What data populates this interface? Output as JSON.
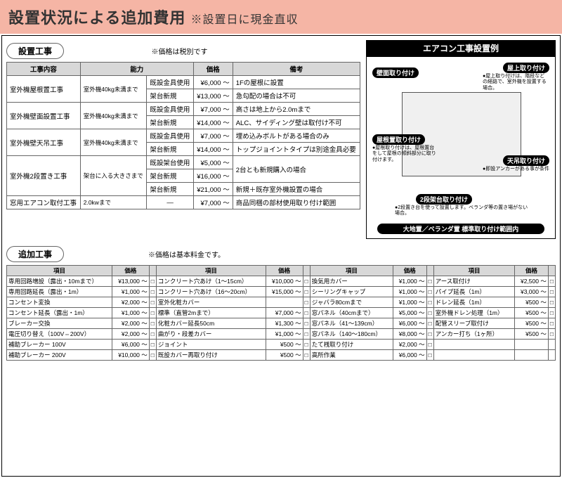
{
  "colors": {
    "header_bg": "#f5b5a5",
    "th_bg": "#d8d8d8",
    "border": "#666666",
    "black": "#000000"
  },
  "header": {
    "main": "設置状況による追加費用",
    "sub": "※設置日に現金直収"
  },
  "section1": {
    "label": "設置工事",
    "note": "※価格は税別です"
  },
  "table1": {
    "headers": [
      "工事内容",
      "能力",
      "",
      "価格",
      "備考"
    ],
    "rows": [
      {
        "a": "室外機屋根置工事",
        "a_rs": 2,
        "b": "室外機40kg未満まで",
        "b_rs": 2,
        "c": "既設金具使用",
        "d": "¥6,000 ～",
        "e": "1Fの屋根に設置"
      },
      {
        "c": "架台新規",
        "d": "¥13,000 ～",
        "e": "急勾配の場合は不可"
      },
      {
        "a": "室外機壁面設置工事",
        "a_rs": 2,
        "b": "室外機40kg未満まで",
        "b_rs": 2,
        "c": "既設金具使用",
        "d": "¥7,000 ～",
        "e": "高さは地上から2.0mまで"
      },
      {
        "c": "架台新規",
        "d": "¥14,000 ～",
        "e": "ALC、サイディング壁は取付け不可"
      },
      {
        "a": "室外機壁天吊工事",
        "a_rs": 2,
        "b": "室外機40kg未満まで",
        "b_rs": 2,
        "c": "既設金具使用",
        "d": "¥7,000 ～",
        "e": "埋め込みボルトがある場合のみ"
      },
      {
        "c": "架台新規",
        "d": "¥14,000 ～",
        "e": "トップジョイントタイプは別途金具必要"
      },
      {
        "a": "室外機2段置き工事",
        "a_rs": 3,
        "b": "架台に入る大きさまで",
        "b_rs": 3,
        "c": "既設架台使用",
        "d": "¥5,000 ～",
        "e": "2台とも新規購入の場合",
        "e_rs": 2
      },
      {
        "c": "架台新規",
        "d": "¥16,000 ～"
      },
      {
        "c": "架台新規",
        "d": "¥21,000 ～",
        "e": "新規＋既存室外機設置の場合"
      },
      {
        "a": "窓用エアコン取付工事",
        "b": "2.0kwまで",
        "c": "—",
        "d": "¥7,000 ～",
        "e": "商品同梱の部材使用取り付け範囲"
      }
    ]
  },
  "example": {
    "title": "エアコン工事設置例",
    "labels": {
      "wall": "壁面取り付け",
      "roof_top": "屋上取り付け",
      "roof": "屋根置取り付け",
      "ceiling": "天吊取り付け",
      "two_stage": "2段架台取り付け",
      "ground": "大地置／ベランダ置 標準取り付け範囲内"
    },
    "descs": {
      "roof_top": "●屋上取り付けは、階段などの経路で、室外機を設置する場合。",
      "roof": "●屋根取り付けは、屋根置台をして屋根の傾斜部分に取り付けます。",
      "ceiling": "●即設アンカーがある事が条件",
      "two_stage": "●2段置き台を使って設置します。ベランダ等の置き場がない場合。"
    }
  },
  "section2": {
    "label": "追加工事",
    "note": "※価格は基本料金です。"
  },
  "table2": {
    "header": {
      "item": "項目",
      "price": "価格"
    },
    "cols": [
      [
        {
          "i": "専用回路増設（露出・10mまで）",
          "p": "¥13,000 ～"
        },
        {
          "i": "専用回路延長（露出・1m）",
          "p": "¥1,000 ～"
        },
        {
          "i": "コンセント変換",
          "p": "¥2,000 ～"
        },
        {
          "i": "コンセント延長（露出・1m）",
          "p": "¥1,000 ～"
        },
        {
          "i": "ブレーカー交換",
          "p": "¥2,000 ～"
        },
        {
          "i": "電圧切り替え（100V⇔200V）",
          "p": "¥2,000 ～"
        },
        {
          "i": "補助ブレーカー 100V",
          "p": "¥6,000 ～"
        },
        {
          "i": "補助ブレーカー 200V",
          "p": "¥10,000 ～"
        }
      ],
      [
        {
          "i": "コンクリート穴あけ（1～15cm）",
          "p": "¥10,000 ～"
        },
        {
          "i": "コンクリート穴あけ（16～20cm）",
          "p": "¥15,000 ～"
        },
        {
          "i": "室外化粧カバー",
          "p": ""
        },
        {
          "i": "標準（直管2mまで）",
          "p": "¥7,000 ～"
        },
        {
          "i": "化粧カバー延長50cm",
          "p": "¥1,300 ～"
        },
        {
          "i": "曲がり・段差カバー",
          "p": "¥1,000 ～"
        },
        {
          "i": "ジョイント",
          "p": "¥500 ～"
        },
        {
          "i": "既設カバー再取り付け",
          "p": "¥500 ～"
        }
      ],
      [
        {
          "i": "換気用カバー",
          "p": "¥1,000 ～"
        },
        {
          "i": "シーリングキャップ",
          "p": "¥1,000 ～"
        },
        {
          "i": "ジャバラ80cmまで",
          "p": "¥1,000 ～"
        },
        {
          "i": "窓パネル（40cmまで）",
          "p": "¥5,000 ～"
        },
        {
          "i": "窓パネル（41～139cm）",
          "p": "¥6,000 ～"
        },
        {
          "i": "窓パネル（140～180cm）",
          "p": "¥8,000 ～"
        },
        {
          "i": "たて桟取り付け",
          "p": "¥2,000 ～"
        },
        {
          "i": "高所作業",
          "p": "¥6,000 ～"
        }
      ],
      [
        {
          "i": "アース取付け",
          "p": "¥2,500 ～"
        },
        {
          "i": "パイプ延長（1m）",
          "p": "¥3,000 ～"
        },
        {
          "i": "ドレン延長（1m）",
          "p": "¥500 ～"
        },
        {
          "i": "室外機ドレン処理（1m）",
          "p": "¥500 ～"
        },
        {
          "i": "配管スリーブ取付け",
          "p": "¥500 ～"
        },
        {
          "i": "アンカー打ち（1ヶ所）",
          "p": "¥500 ～"
        },
        {
          "i": "",
          "p": ""
        },
        {
          "i": "",
          "p": ""
        }
      ]
    ]
  }
}
